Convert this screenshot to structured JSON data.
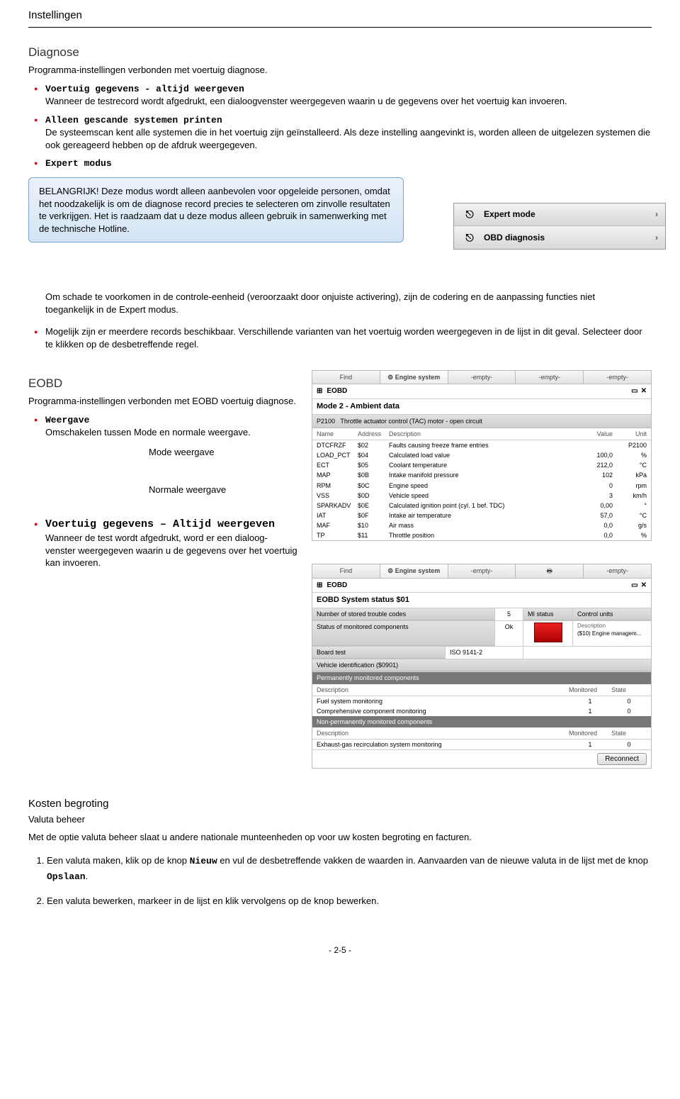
{
  "page_title": "Instellingen",
  "diagnose": {
    "heading": "Diagnose",
    "sub": "Programma-instellingen verbonden met voertuig diagnose.",
    "items": [
      {
        "title": "Voertuig gegevens - altijd weergeven",
        "body": "Wanneer de testrecord wordt afgedrukt, een dialoogvenster weergegeven waarin u de gegevens over het voertuig kan invoeren."
      },
      {
        "title": "Alleen gescande systemen printen",
        "body": "De systeemscan kent alle systemen die in het voertuig zijn geïnstalleerd. Als deze instelling aangevinkt is, worden alleen de uitgelezen systemen die ook gereageerd hebben op de afdruk weergegeven."
      },
      {
        "title": "Expert modus",
        "body": ""
      }
    ],
    "callout": "BELANGRIJK! Deze modus wordt alleen aanbevolen voor opgeleide personen, omdat het noodzakelijk is om de diagnose record precies te selecteren om zinvolle resultaten te verkrijgen. Het is raadzaam dat u deze modus alleen gebruik in samenwerking met de technische Hotline.",
    "menu": {
      "row1": "Expert mode",
      "row2": "OBD diagnosis"
    },
    "after1": "Om schade te voorkomen in de controle-eenheid (veroorzaakt door onjuiste activering), zijn de codering en de aanpassing functies niet toegankelijk in de Expert modus.",
    "after2": "Mogelijk zijn er meerdere records beschikbaar. Verschillende varianten van het voertuig worden weergegeven in de lijst in dit geval. Selecteer door te klikken op de desbetreffende regel."
  },
  "eobd": {
    "heading": "EOBD",
    "sub": "Programma-instellingen verbonden met EOBD voertuig diagnose.",
    "weergave_title": "Weergave",
    "weergave_body": "Omschakelen tussen Mode en normale weergave.",
    "mode_label": "Mode weergave",
    "normale_label": "Normale weergave",
    "vg_title": "Voertuig gegevens – Altijd weergeven",
    "vg_body": "Wanneer de test wordt afgedrukt, word er een dialoog-venster weergegeven waarin u de gegevens over het voertuig kan invoeren.",
    "tabs": [
      "Find",
      "Engine system",
      "-empty-",
      "-empty-",
      "-empty-"
    ],
    "panel1": {
      "title": "EOBD",
      "mode": "Mode 2 - Ambient data",
      "pcode": "P2100",
      "pdesc": "Throttle actuator control (TAC) motor - open circuit",
      "head": [
        "Name",
        "Address",
        "Description",
        "Value",
        "Unit"
      ],
      "rows": [
        [
          "DTCFRZF",
          "$02",
          "Faults causing freeze frame entries",
          "",
          "P2100"
        ],
        [
          "LOAD_PCT",
          "$04",
          "Calculated load value",
          "100,0",
          "%"
        ],
        [
          "ECT",
          "$05",
          "Coolant temperature",
          "212,0",
          "°C"
        ],
        [
          "MAP",
          "$0B",
          "Intake manifold pressure",
          "102",
          "kPa"
        ],
        [
          "RPM",
          "$0C",
          "Engine speed",
          "0",
          "rpm"
        ],
        [
          "VSS",
          "$0D",
          "Vehicle speed",
          "3",
          "km/h"
        ],
        [
          "SPARKADV",
          "$0E",
          "Calculated ignition point (cyl. 1 bef. TDC)",
          "0,00",
          "°"
        ],
        [
          "IAT",
          "$0F",
          "Intake air temperature",
          "57,0",
          "°C"
        ],
        [
          "MAF",
          "$10",
          "Air mass",
          "0,0",
          "g/s"
        ],
        [
          "TP",
          "$11",
          "Throttle position",
          "0,0",
          "%"
        ]
      ]
    },
    "panel2": {
      "title": "EOBD",
      "status_title": "EOBD System status  $01",
      "row_a": [
        "Number of stored trouble codes",
        "5",
        "MI status",
        "Control units"
      ],
      "row_b": [
        "Status of monitored components",
        "Ok"
      ],
      "row_c_label": "Board test",
      "row_c_val": "ISO 9141-2",
      "row_d": "Vehicle identification ($0901)",
      "control_unit": "($10) Engine managem...",
      "perm_header": "Permanently monitored components",
      "perm_cols": [
        "Description",
        "Monitored",
        "State"
      ],
      "perm_rows": [
        [
          "Fuel system monitoring",
          "1",
          "0"
        ],
        [
          "Comprehensive component monitoring",
          "1",
          "0"
        ]
      ],
      "nonperm_header": "Non-permanently monitored components",
      "nonperm_cols": [
        "Description",
        "Monitored",
        "State"
      ],
      "nonperm_row": [
        "Exhaust-gas recirculation system monitoring",
        "1",
        "0"
      ],
      "reconnect": "Reconnect"
    }
  },
  "kosten": {
    "heading": "Kosten begroting",
    "sub": "Valuta beheer",
    "body": "Met de optie valuta beheer slaat u andere nationale munteenheden op voor uw kosten begroting en facturen.",
    "step1a": "Een valuta maken, klik op de knop ",
    "step1_btn1": "Nieuw",
    "step1b": " en vul de desbetreffende vakken de waarden in.   Aanvaarden van de nieuwe valuta in de lijst met de knop ",
    "step1_btn2": "Opslaan",
    "step1c": ".",
    "step2": "Een valuta bewerken, markeer in de lijst en klik vervolgens op de knop bewerken."
  },
  "footer": "- 2-5 -",
  "colors": {
    "bullet": "#e00000",
    "callout_border": "#7aa3cf",
    "callout_bg_top": "#eaf2fb",
    "callout_bg_bot": "#d4e4f5"
  }
}
